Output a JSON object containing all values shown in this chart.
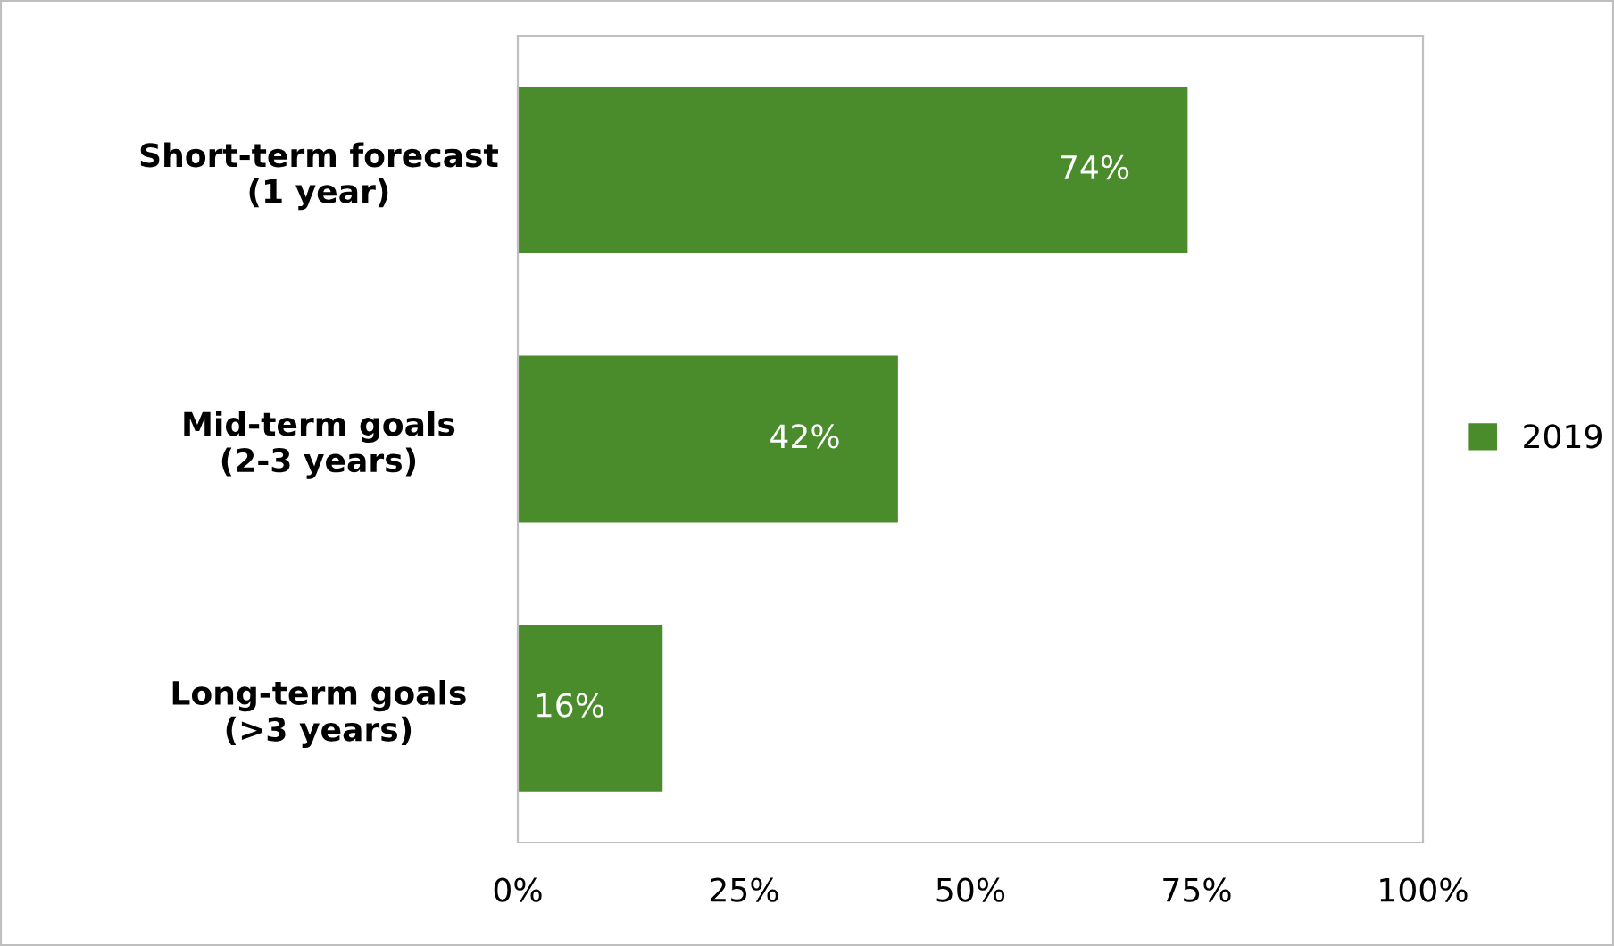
{
  "chart_data": {
    "type": "bar",
    "orientation": "horizontal",
    "categories": [
      "Short-term forecast\n(1 year)",
      "Mid-term goals\n(2-3 years)",
      "Long-term goals\n(>3 years)"
    ],
    "series": [
      {
        "name": "2019",
        "color": "#4a8c2b",
        "values": [
          74,
          42,
          16
        ],
        "value_labels": [
          "74%",
          "42%",
          "16%"
        ]
      }
    ],
    "xlim": [
      0,
      100
    ],
    "xticks": [
      {
        "value": 0,
        "label": "0%"
      },
      {
        "value": 25,
        "label": "25%"
      },
      {
        "value": 50,
        "label": "50%"
      },
      {
        "value": 75,
        "label": "75%"
      },
      {
        "value": 100,
        "label": "100%"
      }
    ],
    "grid": false,
    "legend": "right"
  }
}
